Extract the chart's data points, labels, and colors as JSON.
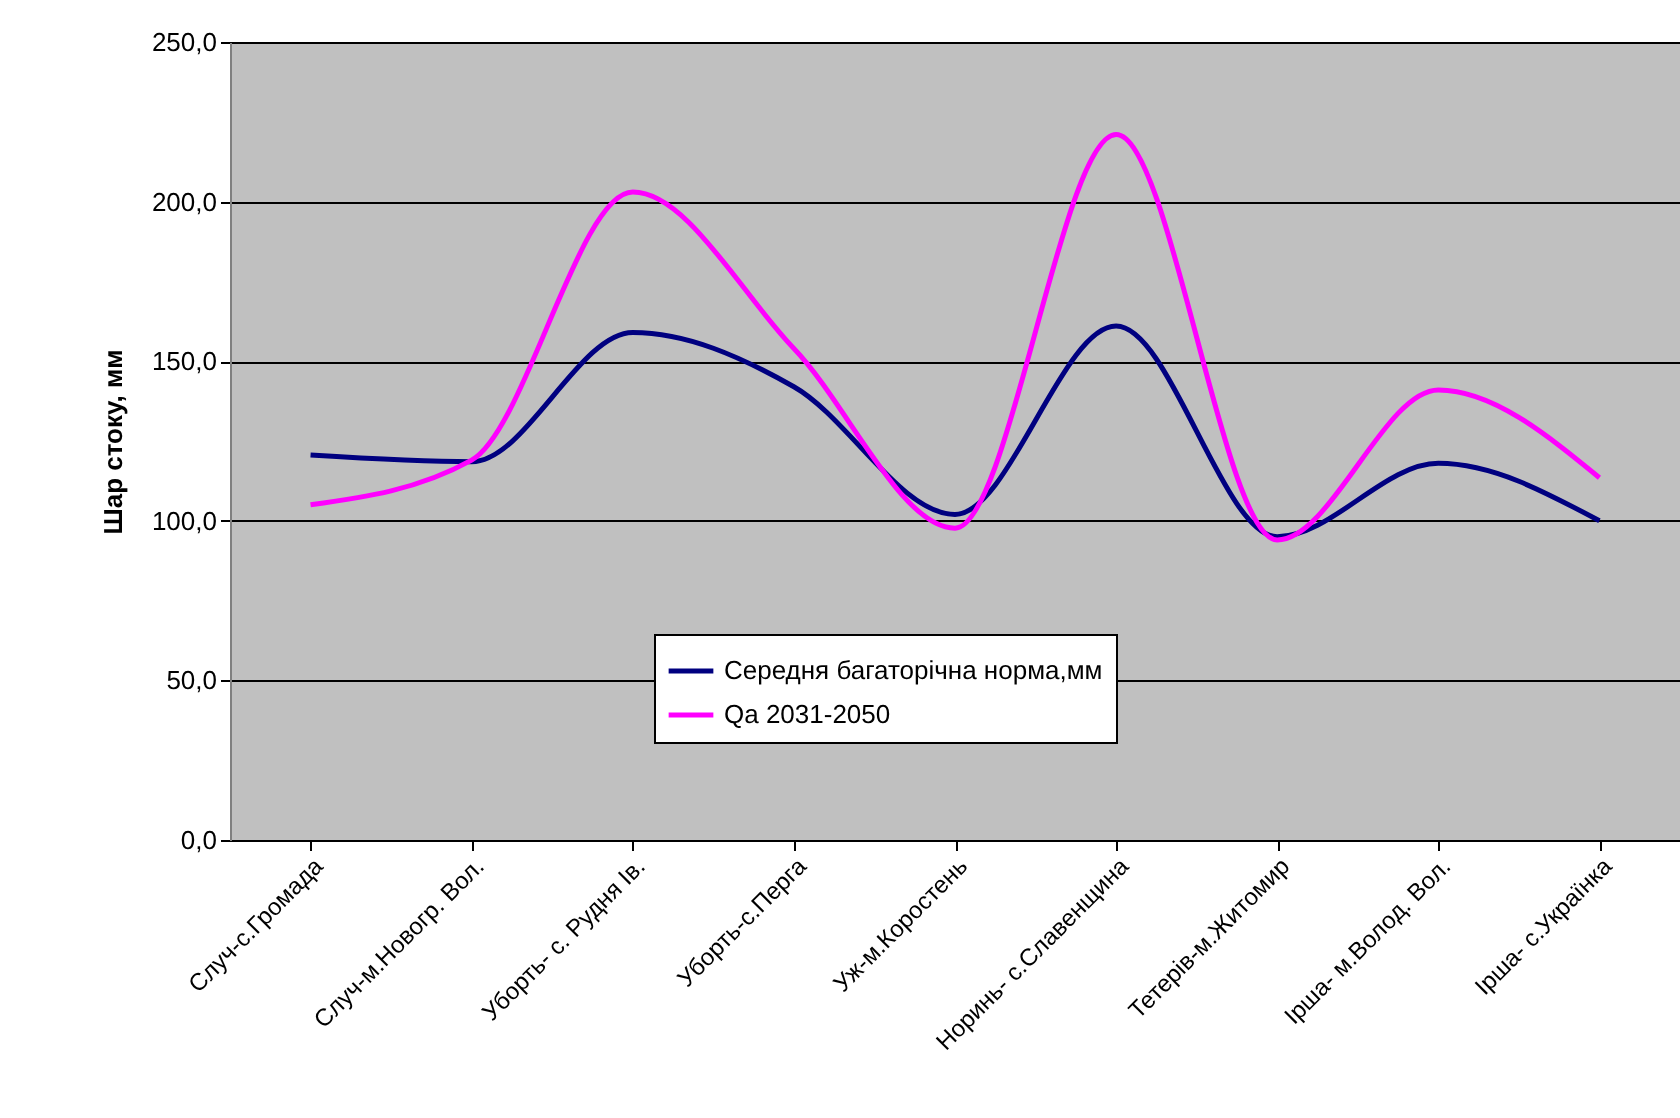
{
  "chart_data": {
    "type": "line",
    "ylabel": "Шар стоку, мм",
    "categories": [
      "Случ-с.Громада",
      "Случ-м.Новогр. Вол.",
      "Уборть- с. Рудня Ів.",
      "Уборть-с.Перга",
      "Уж-м.Коростень",
      "Норинь- с.Славенщина",
      "Тетерів-м.Житомир",
      "Ірша- м.Волод. Вол.",
      "Ірша- с.Українка"
    ],
    "series": [
      {
        "name": "Середня багаторічна норма,мм",
        "color": "#000080",
        "values": [
          120.6,
          118.5,
          159,
          142,
          102,
          161,
          95,
          118,
          100
        ]
      },
      {
        "name": "Qа 2031-2050",
        "color": "#ff00ff",
        "values": [
          105,
          119,
          203,
          154,
          97.7,
          221,
          94,
          141,
          113.5
        ]
      }
    ],
    "ylim": [
      0,
      250
    ],
    "yticks": [
      {
        "value": 0,
        "label": "0,0"
      },
      {
        "value": 50,
        "label": "50,0"
      },
      {
        "value": 100,
        "label": "100,0"
      },
      {
        "value": 150,
        "label": "150,0"
      },
      {
        "value": 200,
        "label": "200,0"
      },
      {
        "value": 250,
        "label": "250,0"
      }
    ],
    "grid": "y",
    "legend": "bottom",
    "marker": "none",
    "line_style": "solid"
  }
}
